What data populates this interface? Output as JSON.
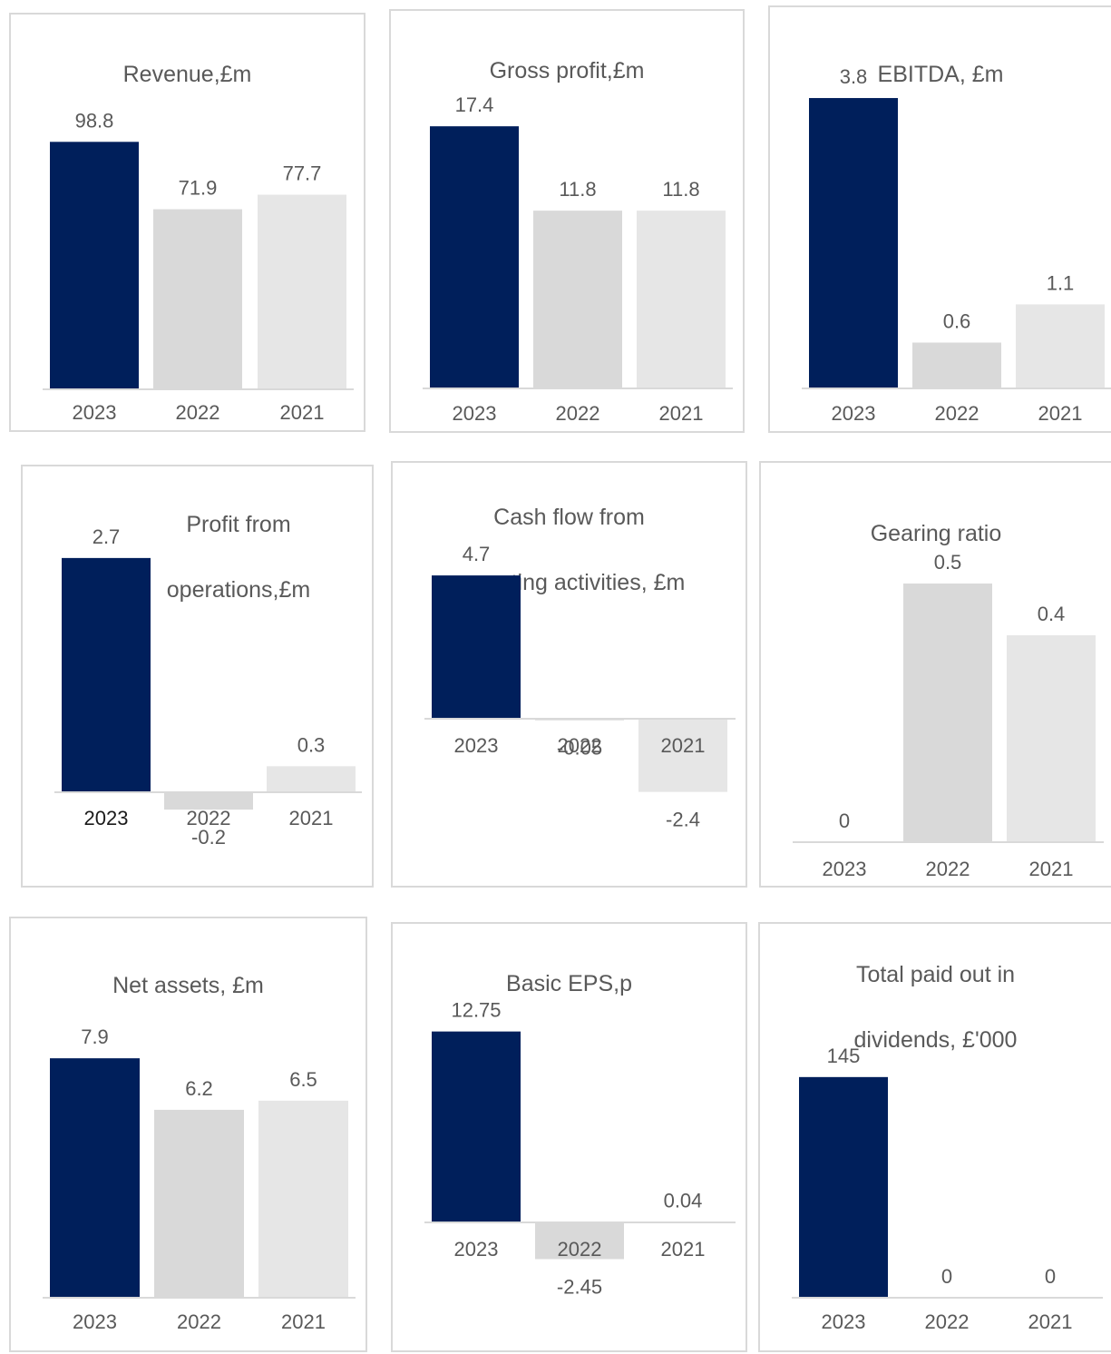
{
  "colors": {
    "current": "#001f5b",
    "prior1": "#d9d9d9",
    "prior2": "#e6e6e6",
    "axis": "#d9d9d9",
    "text": "#595959"
  },
  "chart_data": [
    {
      "type": "bar",
      "title_lines": [
        "Revenue,£m"
      ],
      "categories": [
        "2023",
        "2022",
        "2021"
      ],
      "values": [
        98.8,
        71.9,
        77.7
      ],
      "labels": [
        "98.8",
        "71.9",
        "77.7"
      ]
    },
    {
      "type": "bar",
      "title_lines": [
        "Gross profit,£m"
      ],
      "categories": [
        "2023",
        "2022",
        "2021"
      ],
      "values": [
        17.4,
        11.8,
        11.8
      ],
      "labels": [
        "17.4",
        "11.8",
        "11.8"
      ]
    },
    {
      "type": "bar",
      "title_lines": [
        "EBITDA, £m"
      ],
      "categories": [
        "2023",
        "2022",
        "2021"
      ],
      "values": [
        3.8,
        0.6,
        1.1
      ],
      "labels": [
        "3.8",
        "0.6",
        "1.1"
      ]
    },
    {
      "type": "bar",
      "title_lines": [
        "Profit from",
        "operations,£m"
      ],
      "categories": [
        "2023",
        "2022",
        "2021"
      ],
      "values": [
        2.7,
        -0.2,
        0.3
      ],
      "labels": [
        "2.7",
        "-0.2",
        "0.3"
      ]
    },
    {
      "type": "bar",
      "title_lines": [
        "Cash flow from",
        "operating activities, £m"
      ],
      "categories": [
        "2023",
        "2022",
        "2021"
      ],
      "values": [
        4.7,
        -0.05,
        -2.4
      ],
      "labels": [
        "4.7",
        "-0.05",
        "-2.4"
      ]
    },
    {
      "type": "bar",
      "title_lines": [
        "Gearing ratio"
      ],
      "categories": [
        "2023",
        "2022",
        "2021"
      ],
      "values": [
        0,
        0.5,
        0.4
      ],
      "labels": [
        "0",
        "0.5",
        "0.4"
      ]
    },
    {
      "type": "bar",
      "title_lines": [
        "Net assets, £m"
      ],
      "categories": [
        "2023",
        "2022",
        "2021"
      ],
      "values": [
        7.9,
        6.2,
        6.5
      ],
      "labels": [
        "7.9",
        "6.2",
        "6.5"
      ]
    },
    {
      "type": "bar",
      "title_lines": [
        "Basic EPS,p"
      ],
      "categories": [
        "2023",
        "2022",
        "2021"
      ],
      "values": [
        12.75,
        -2.45,
        0.04
      ],
      "labels": [
        "12.75",
        "-2.45",
        "0.04"
      ]
    },
    {
      "type": "bar",
      "title_lines": [
        "Total paid out in",
        "dividends, £'000"
      ],
      "categories": [
        "2023",
        "2022",
        "2021"
      ],
      "values": [
        145,
        0,
        0
      ],
      "labels": [
        "145",
        "0",
        "0"
      ]
    }
  ]
}
